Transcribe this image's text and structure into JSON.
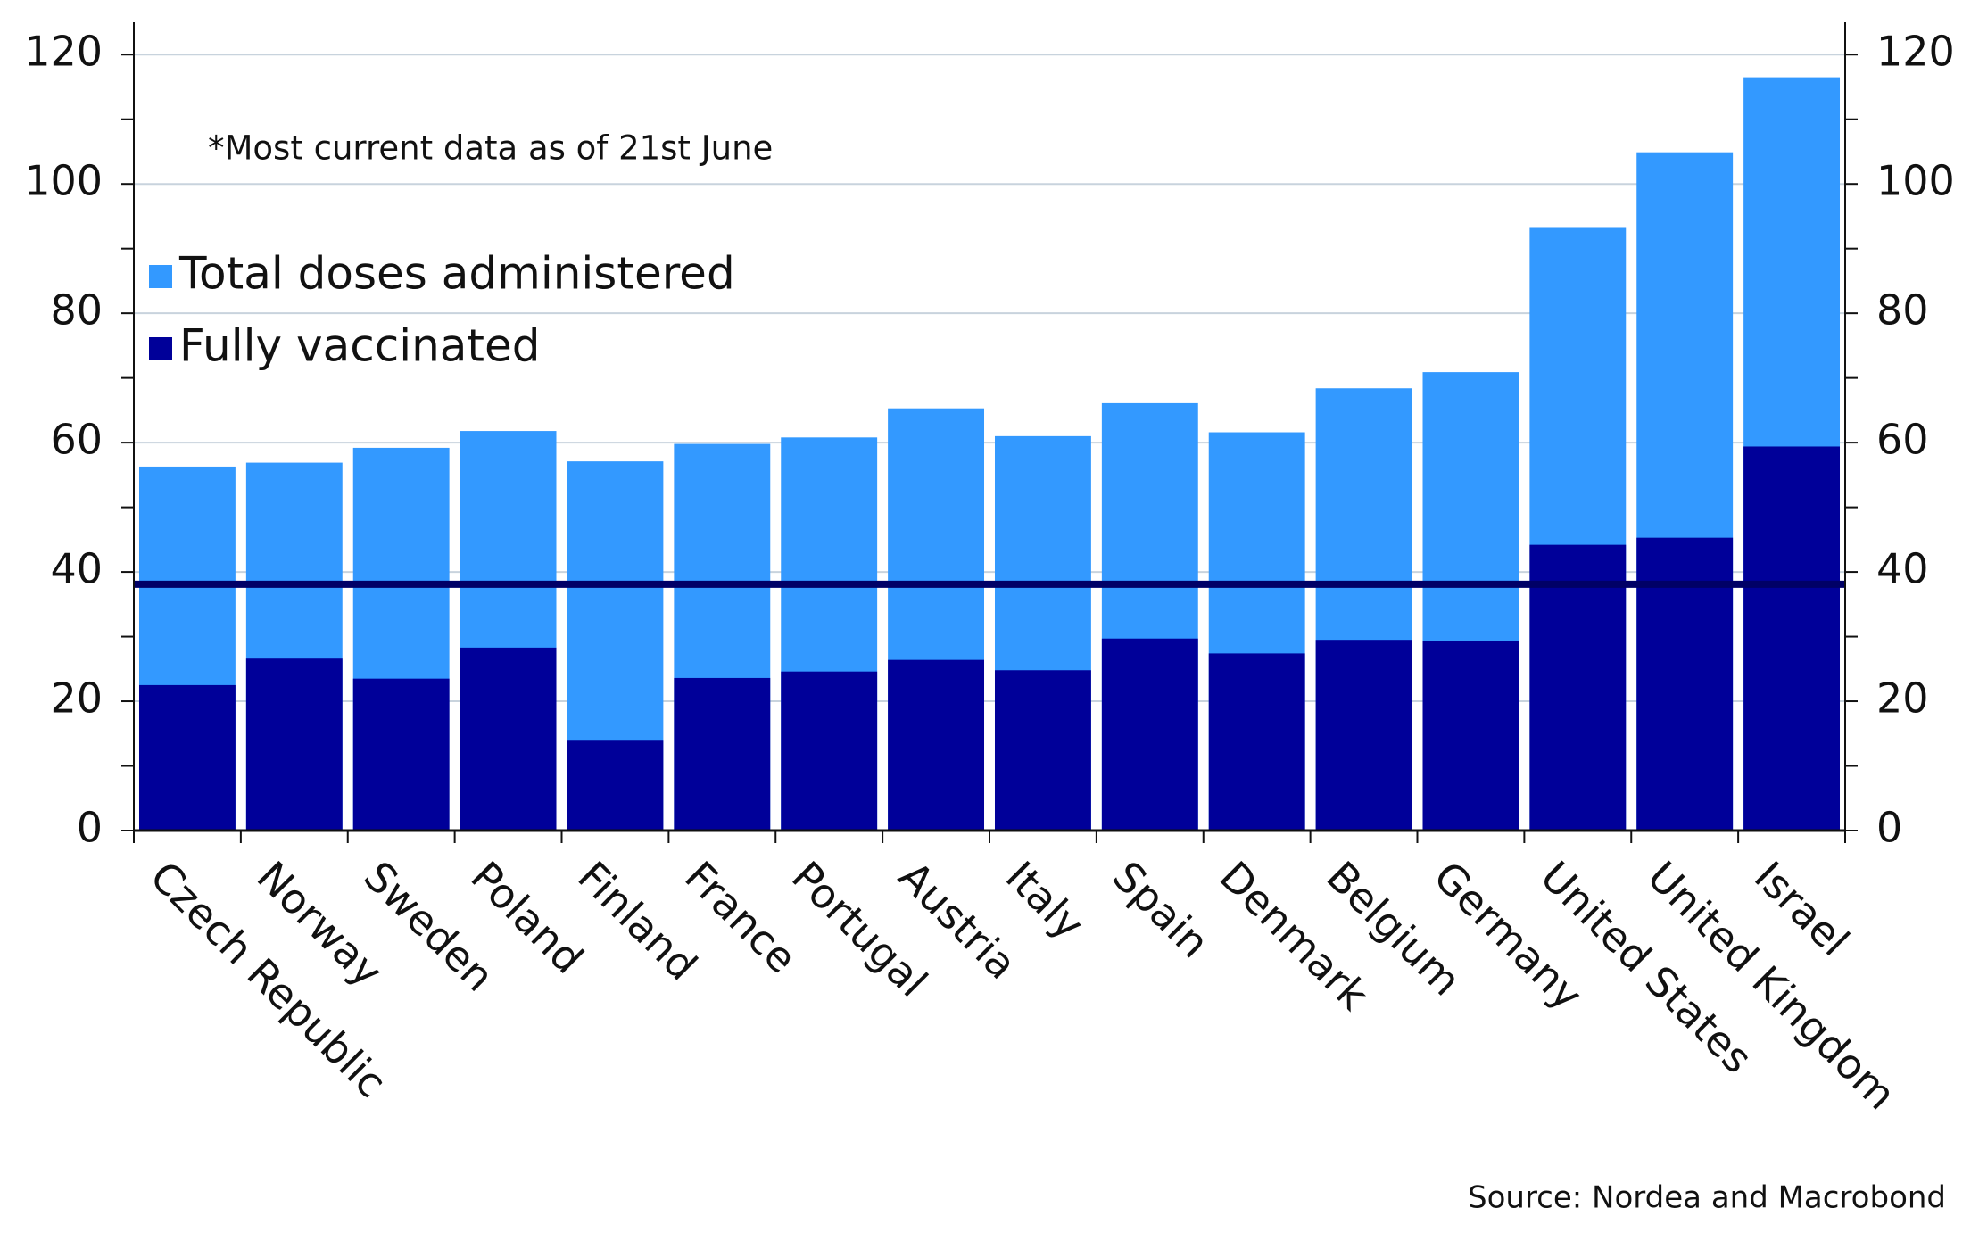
{
  "chart_data": {
    "type": "overlap_bar",
    "annotation": "*Most current data as of 21st June",
    "source": "Source: Nordea and Macrobond",
    "categories": [
      "Czech Republic",
      "Norway",
      "Sweden",
      "Poland",
      "Finland",
      "France",
      "Portugal",
      "Austria",
      "Italy",
      "Spain",
      "Denmark",
      "Belgium",
      "Germany",
      "United States",
      "United Kingdom",
      "Israel"
    ],
    "series": [
      {
        "name": "Total doses administered",
        "color": "#3399ff",
        "values": [
          56.3,
          56.9,
          59.2,
          61.8,
          57.1,
          59.8,
          60.8,
          65.3,
          61.0,
          66.1,
          61.6,
          68.4,
          70.9,
          93.2,
          104.9,
          116.5
        ]
      },
      {
        "name": "Fully vaccinated",
        "color": "#000099",
        "values": [
          22.5,
          26.6,
          23.5,
          28.3,
          13.9,
          23.6,
          24.6,
          26.4,
          24.8,
          29.7,
          27.4,
          29.5,
          29.3,
          44.2,
          45.3,
          59.4
        ]
      }
    ],
    "hline": {
      "value": 38.1,
      "color": "#000066"
    },
    "ylim": [
      0,
      125
    ],
    "yticks": [
      0,
      20,
      40,
      60,
      80,
      100,
      120
    ],
    "y2lim": [
      0,
      125
    ],
    "y2ticks": [
      0,
      20,
      40,
      60,
      80,
      100,
      120
    ],
    "grid": true,
    "legend": "upper left"
  }
}
